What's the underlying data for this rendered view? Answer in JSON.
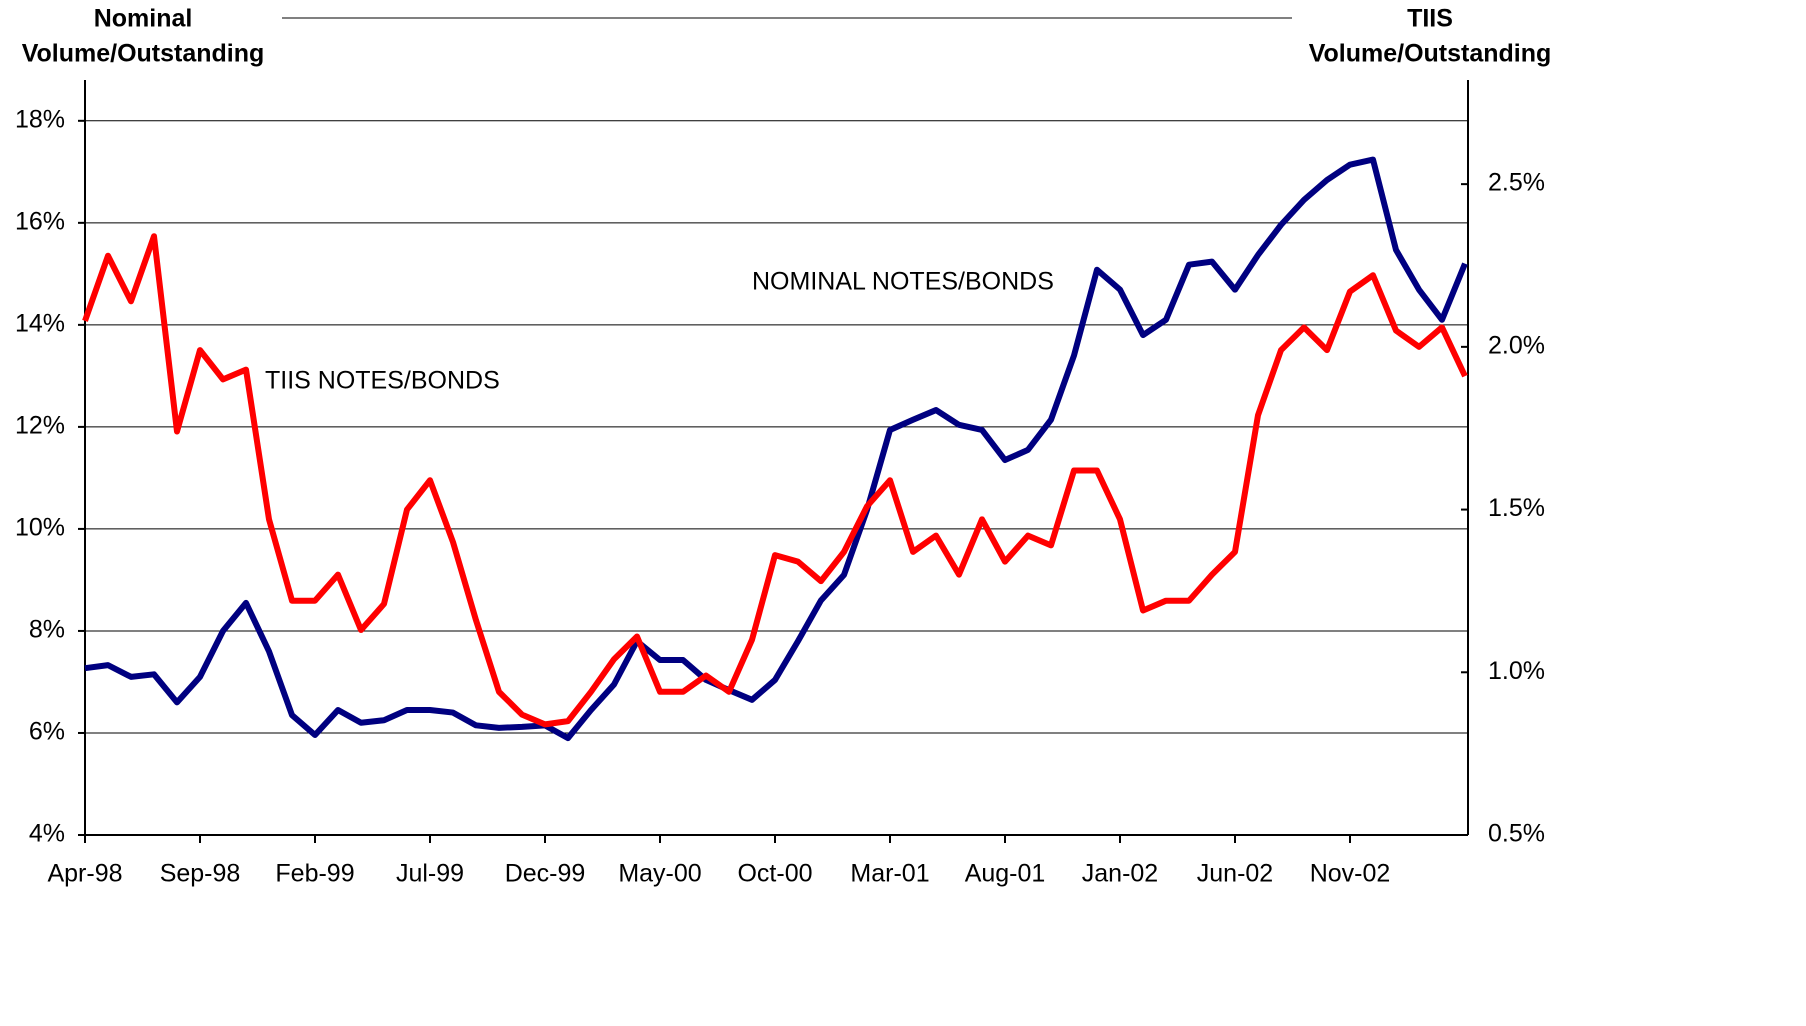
{
  "chart_data": {
    "type": "line",
    "y_title": [
      "Nominal",
      "Volume/Outstanding"
    ],
    "y2_title": [
      "TIIS",
      "Volume/Outstanding"
    ],
    "categories": [
      "Apr-98",
      null,
      null,
      null,
      null,
      "Sep-98",
      null,
      null,
      null,
      null,
      "Feb-99",
      null,
      null,
      null,
      null,
      "Jul-99",
      null,
      null,
      null,
      null,
      "Dec-99",
      null,
      null,
      null,
      null,
      "May-00",
      null,
      null,
      null,
      null,
      "Oct-00",
      null,
      null,
      null,
      null,
      "Mar-01",
      null,
      null,
      null,
      null,
      "Aug-01",
      null,
      null,
      null,
      null,
      "Jan-02",
      null,
      null,
      null,
      null,
      "Jun-02",
      null,
      null,
      null,
      null,
      "Nov-02",
      null,
      null,
      null,
      null,
      null
    ],
    "series": [
      {
        "name": "NOMINAL NOTES/BONDS",
        "color": "#000080",
        "axis": "y",
        "values": [
          7.27,
          7.33,
          7.1,
          7.15,
          6.6,
          7.1,
          8.0,
          8.55,
          7.6,
          6.35,
          5.96,
          6.45,
          6.2,
          6.25,
          6.45,
          6.45,
          6.4,
          6.15,
          6.1,
          6.12,
          6.15,
          5.9,
          6.45,
          6.95,
          7.8,
          7.43,
          7.43,
          7.04,
          6.84,
          6.65,
          7.04,
          7.8,
          8.6,
          9.1,
          10.37,
          11.94,
          12.14,
          12.33,
          12.04,
          11.94,
          11.35,
          11.55,
          12.14,
          13.4,
          15.08,
          14.69,
          13.8,
          14.1,
          15.18,
          15.24,
          14.69,
          15.37,
          15.96,
          16.45,
          16.84,
          17.14,
          17.24,
          15.47,
          14.69,
          14.1,
          15.2
        ]
      },
      {
        "name": "TIIS NOTES/BONDS",
        "color": "#ff0000",
        "axis": "y2",
        "values": [
          2.08,
          2.28,
          2.14,
          2.34,
          1.74,
          1.99,
          1.9,
          1.93,
          1.47,
          1.22,
          1.22,
          1.3,
          1.13,
          1.21,
          1.5,
          1.59,
          1.4,
          1.16,
          0.94,
          0.87,
          0.84,
          0.85,
          0.94,
          1.04,
          1.11,
          0.94,
          0.94,
          0.99,
          0.94,
          1.1,
          1.36,
          1.34,
          1.28,
          1.37,
          1.51,
          1.59,
          1.37,
          1.42,
          1.3,
          1.47,
          1.34,
          1.42,
          1.39,
          1.62,
          1.62,
          1.47,
          1.19,
          1.22,
          1.22,
          1.3,
          1.37,
          1.79,
          1.99,
          2.06,
          1.99,
          2.17,
          2.22,
          2.05,
          2.0,
          2.06,
          1.91
        ]
      }
    ],
    "ylim": [
      4,
      18.8
    ],
    "yticks": [
      {
        "value": 4,
        "label": "4%"
      },
      {
        "value": 6,
        "label": "6%"
      },
      {
        "value": 8,
        "label": "8%"
      },
      {
        "value": 10,
        "label": "10%"
      },
      {
        "value": 12,
        "label": "12%"
      },
      {
        "value": 14,
        "label": "14%"
      },
      {
        "value": 16,
        "label": "16%"
      },
      {
        "value": 18,
        "label": "18%"
      }
    ],
    "y2lim": [
      0.5,
      2.82
    ],
    "y2ticks": [
      {
        "value": 0.5,
        "label": "0.5%"
      },
      {
        "value": 1.0,
        "label": "1.0%"
      },
      {
        "value": 1.5,
        "label": "1.5%"
      },
      {
        "value": 2.0,
        "label": "2.0%"
      },
      {
        "value": 2.5,
        "label": "2.5%"
      }
    ],
    "grid": true
  }
}
